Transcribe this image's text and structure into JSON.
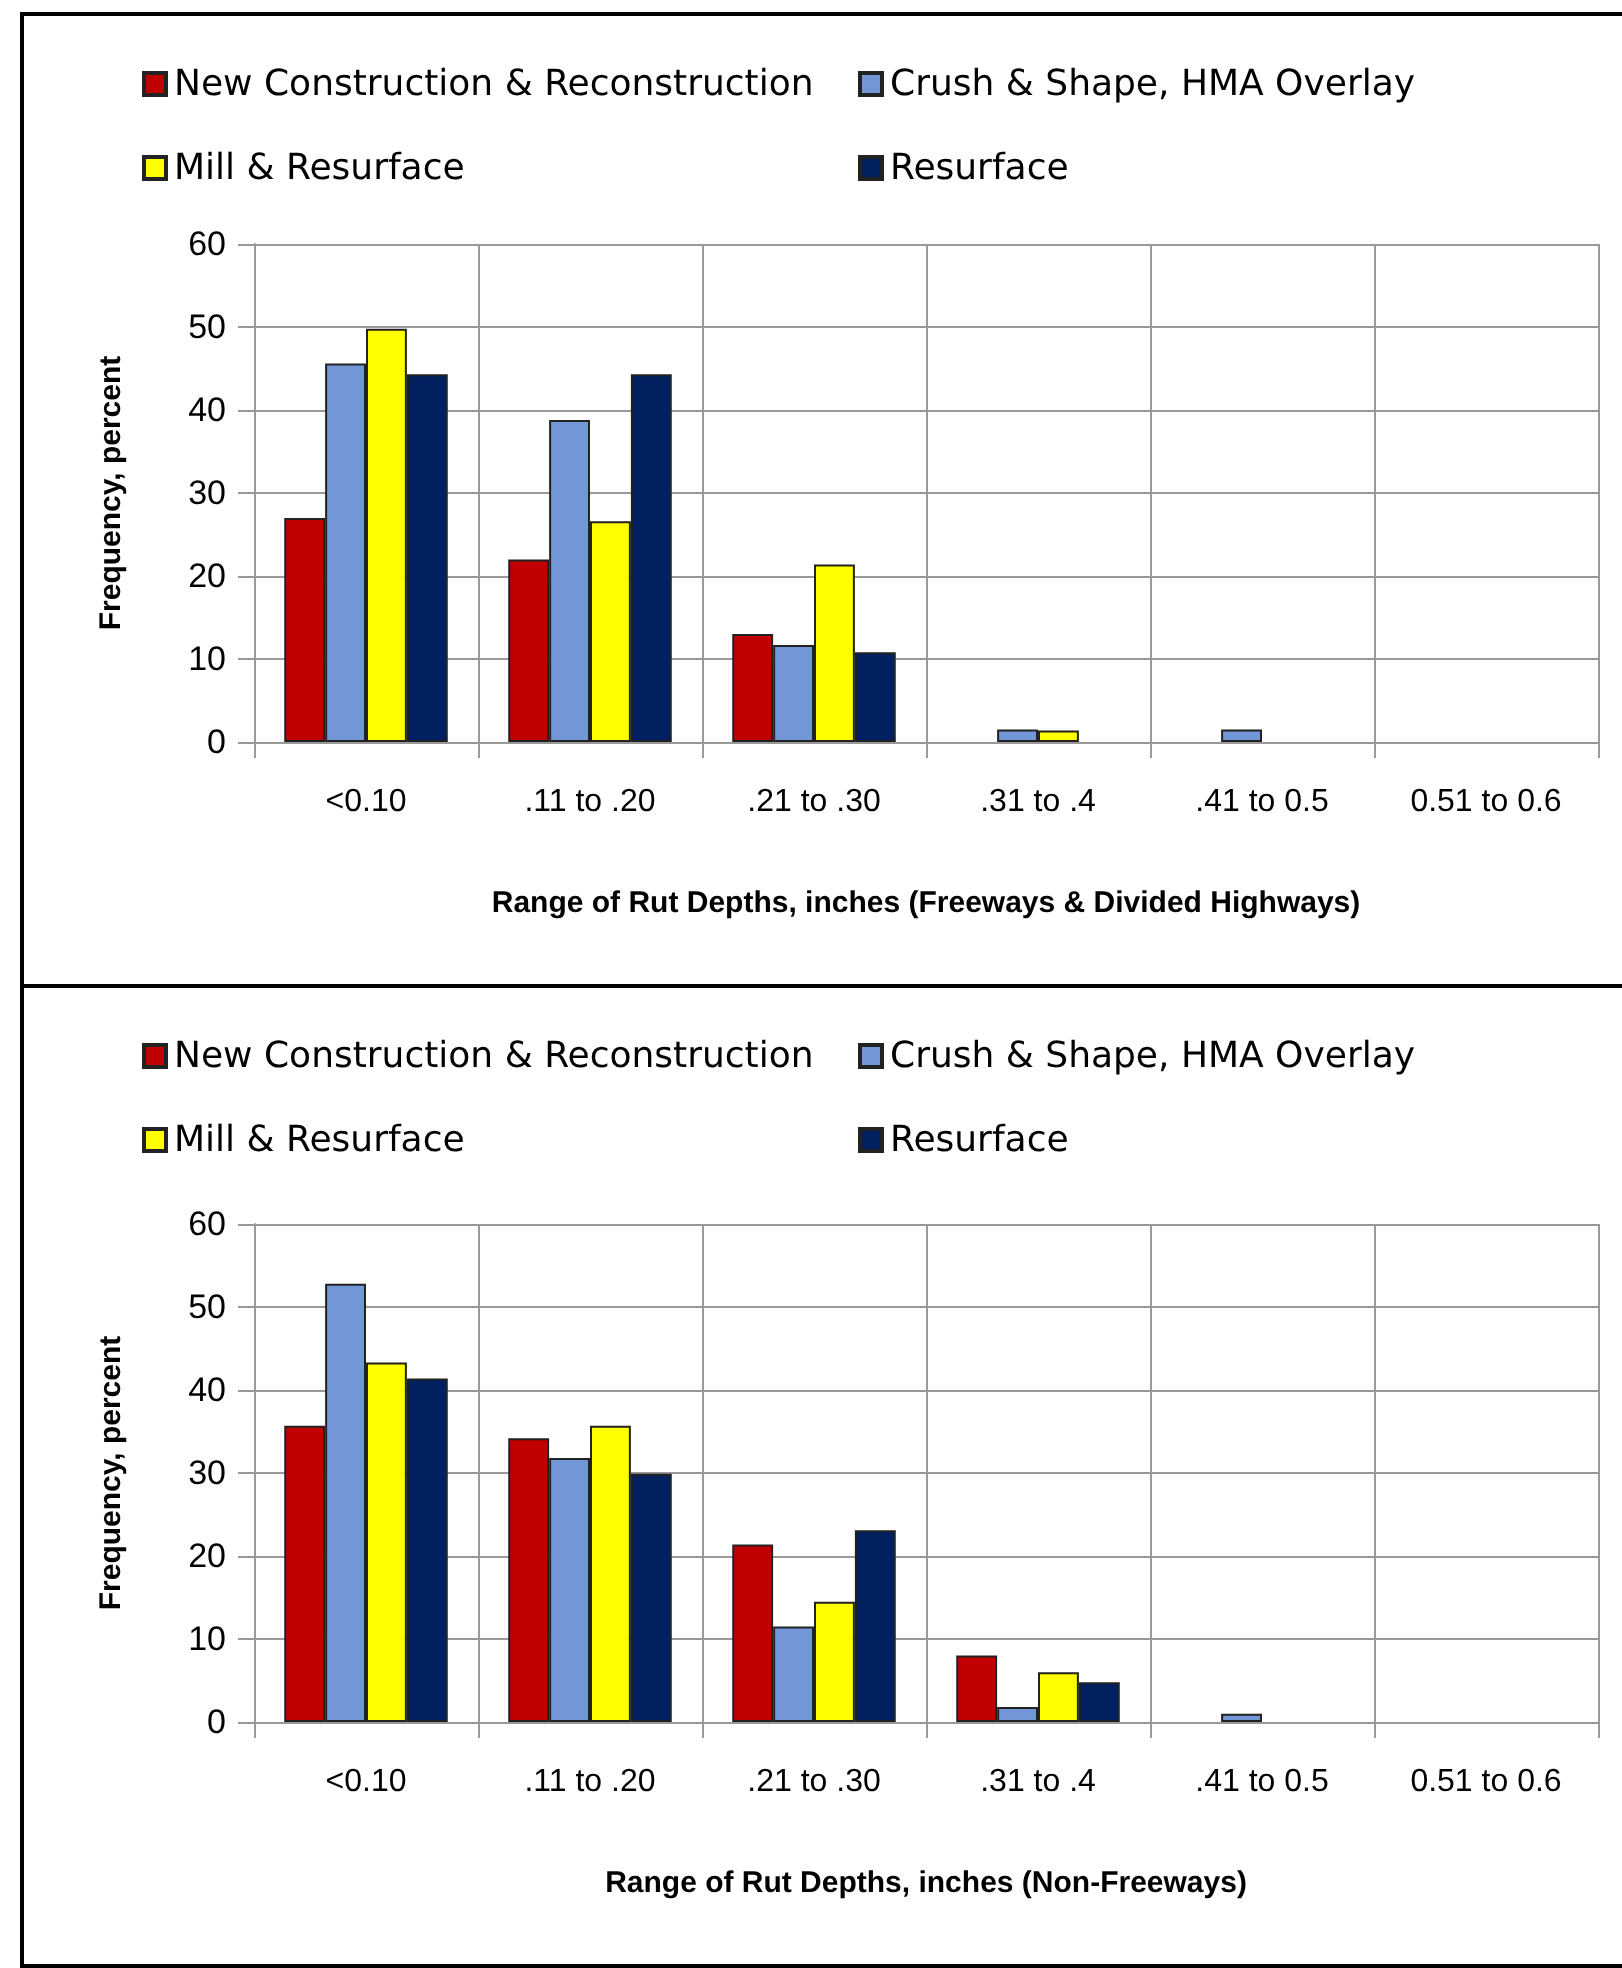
{
  "chart_data": [
    {
      "type": "bar",
      "xlabel": "Range of Rut Depths, inches (Freeways & Divided Highways)",
      "ylabel": "Frequency, percent",
      "categories": [
        "<0.10",
        ".11 to .20",
        ".21 to .30",
        ".31 to .4",
        ".41 to 0.5",
        "0.51 to 0.6"
      ],
      "series": [
        {
          "name": "New Construction & Reconstruction",
          "color": "#c00000",
          "values": [
            27,
            22,
            13,
            0,
            0,
            0
          ]
        },
        {
          "name": "Crush & Shape, HMA Overlay",
          "color": "#7396d6",
          "values": [
            45.6,
            38.8,
            11.7,
            1.5,
            1.5,
            0
          ]
        },
        {
          "name": "Mill & Resurface",
          "color": "#ffff00",
          "values": [
            49.8,
            26.6,
            21.4,
            1.4,
            0,
            0
          ]
        },
        {
          "name": "Resurface",
          "color": "#002060",
          "values": [
            44.3,
            44.3,
            10.8,
            0,
            0,
            0
          ]
        }
      ],
      "ylim": [
        0,
        60
      ],
      "yticks": [
        0,
        10,
        20,
        30,
        40,
        50,
        60
      ],
      "grid": true,
      "legend": "top"
    },
    {
      "type": "bar",
      "xlabel": "Range of Rut Depths, inches (Non-Freeways)",
      "ylabel": "Frequency, percent",
      "categories": [
        "<0.10",
        ".11 to .20",
        ".21 to .30",
        ".31 to .4",
        ".41 to 0.5",
        "0.51 to 0.6"
      ],
      "series": [
        {
          "name": "New Construction & Reconstruction",
          "color": "#c00000",
          "values": [
            35.7,
            34.2,
            21.4,
            8,
            0,
            0
          ]
        },
        {
          "name": "Crush & Shape, HMA Overlay",
          "color": "#7396d6",
          "values": [
            52.8,
            31.8,
            11.5,
            1.8,
            1,
            0
          ]
        },
        {
          "name": "Mill & Resurface",
          "color": "#ffff00",
          "values": [
            43.3,
            35.7,
            14.5,
            6,
            0,
            0
          ]
        },
        {
          "name": "Resurface",
          "color": "#002060",
          "values": [
            41.4,
            29.9,
            23.1,
            4.8,
            0,
            0
          ]
        }
      ],
      "ylim": [
        0,
        60
      ],
      "yticks": [
        0,
        10,
        20,
        30,
        40,
        50,
        60
      ],
      "grid": true,
      "legend": "top"
    }
  ]
}
